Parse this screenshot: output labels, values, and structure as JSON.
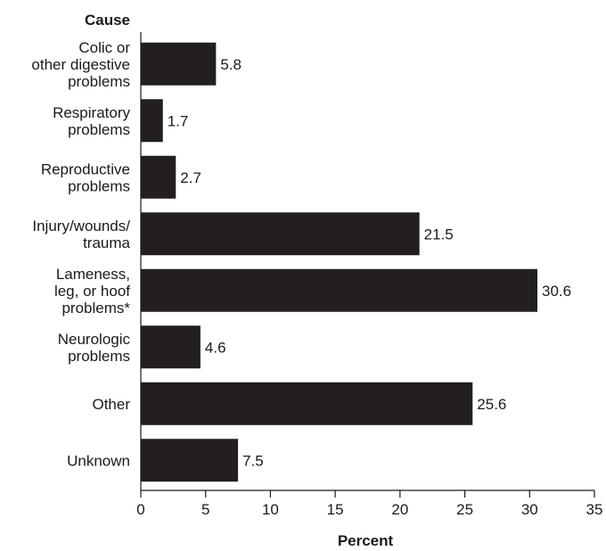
{
  "chart_data": {
    "type": "bar",
    "orientation": "horizontal",
    "ylabel": "Cause",
    "xlabel": "Percent",
    "xlim": [
      0,
      35
    ],
    "xticks": [
      0,
      5,
      10,
      15,
      20,
      25,
      30,
      35
    ],
    "grid": false,
    "bar_color": "#231f20",
    "categories": [
      [
        "Colic or",
        "other digestive",
        "problems"
      ],
      [
        "Respiratory",
        "problems"
      ],
      [
        "Reproductive",
        "problems"
      ],
      [
        "Injury/wounds/",
        "trauma"
      ],
      [
        "Lameness,",
        "leg, or hoof",
        "problems*"
      ],
      [
        "Neurologic",
        "problems"
      ],
      [
        "Other"
      ],
      [
        "Unknown"
      ]
    ],
    "values": [
      5.8,
      1.7,
      2.7,
      21.5,
      30.6,
      4.6,
      25.6,
      7.5
    ],
    "value_labels": [
      "5.8",
      "1.7",
      "2.7",
      "21.5",
      "30.6",
      "4.6",
      "25.6",
      "7.5"
    ]
  }
}
